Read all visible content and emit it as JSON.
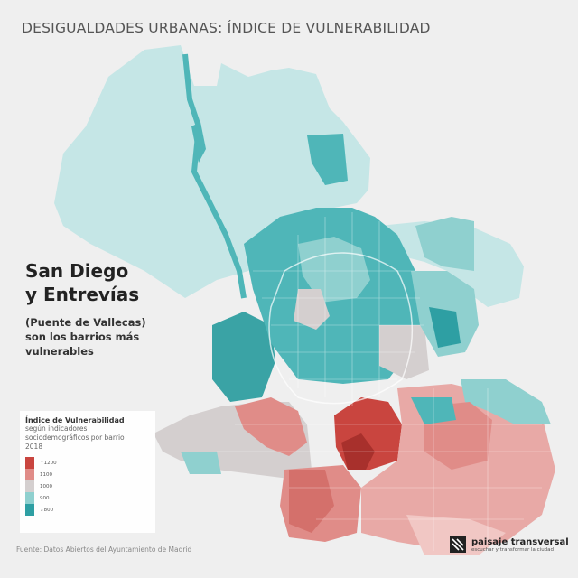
{
  "title": "DESIGUALDADES URBANAS: ÍNDICE DE VULNERABILIDAD",
  "headline": [
    "San Diego",
    "y Entrevías"
  ],
  "subline": [
    "(Puente de Vallecas)",
    "son los barrios más",
    "vulnerables"
  ],
  "legend": {
    "title": "Índice de Vulnerabilidad",
    "subtitle": "según indicadores sociodemográficos por barrio 2018",
    "items": [
      {
        "label": "↑1200",
        "color": "#c9453f"
      },
      {
        "label": "1100",
        "color": "#e08c88"
      },
      {
        "label": "1000",
        "color": "#d4cfcf"
      },
      {
        "label": "900",
        "color": "#8fd0cf"
      },
      {
        "label": "↓800",
        "color": "#2e9fa3"
      }
    ]
  },
  "source": "Fuente: Datos Abiertos del Ayuntamiento de Madrid",
  "brand": {
    "name": "paisaje transversal",
    "tagline": "escuchar y transformar la ciudad"
  },
  "colors": {
    "background": "#efefef",
    "high": "#c9453f",
    "mid_high": "#e08c88",
    "mid": "#d4cfcf",
    "mid_low": "#8fd0cf",
    "low": "#2e9fa3",
    "light_teal": "#c5e6e6"
  }
}
